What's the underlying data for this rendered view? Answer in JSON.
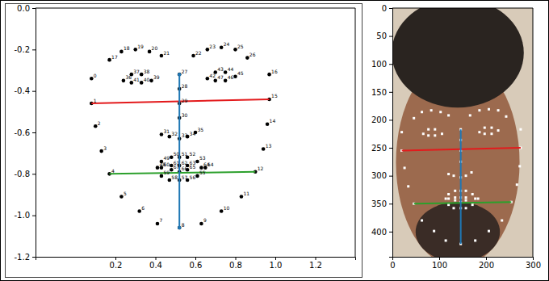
{
  "chart_data": [
    {
      "type": "scatter",
      "xlim": [
        -0.2,
        1.4
      ],
      "ylim": [
        -1.2,
        0.0
      ],
      "xticks": [
        0.2,
        0.4,
        0.6,
        0.8,
        {
          "value": 1.0,
          "label": "1.0"
        },
        1.2
      ],
      "yticks": [
        {
          "value": 0.0,
          "label": "0.0"
        },
        -0.2,
        -0.4,
        -0.6,
        -0.8,
        {
          "value": -1.0,
          "label": "-1.0"
        },
        -1.2
      ],
      "series": [
        {
          "type": "scatter",
          "color": "#000000",
          "marker": "circle",
          "labels": [
            "0",
            "1",
            "2",
            "3",
            "4",
            "5",
            "6",
            "7",
            "8",
            "9",
            "10",
            "11",
            "12",
            "13",
            "14",
            "15",
            "16",
            "17",
            "18",
            "19",
            "20",
            "21",
            "22",
            "23",
            "24",
            "25",
            "26",
            "27",
            "28",
            "29",
            "30",
            "31",
            "32",
            "33",
            "34",
            "35",
            "36",
            "37",
            "38",
            "39",
            "40",
            "41",
            "42",
            "43",
            "44",
            "45",
            "46",
            "47",
            "48",
            "49",
            "50",
            "51",
            "52",
            "53",
            "54",
            "55",
            "56",
            "57",
            "58",
            "59",
            "60",
            "61",
            "62",
            "63",
            "64",
            "65",
            "66",
            "67"
          ],
          "x": [
            0.08,
            0.08,
            0.1,
            0.13,
            0.17,
            0.23,
            0.32,
            0.41,
            0.52,
            0.63,
            0.73,
            0.83,
            0.9,
            0.94,
            0.96,
            0.97,
            0.97,
            0.17,
            0.23,
            0.3,
            0.37,
            0.43,
            0.59,
            0.66,
            0.73,
            0.8,
            0.86,
            0.52,
            0.52,
            0.52,
            0.52,
            0.43,
            0.47,
            0.52,
            0.56,
            0.6,
            0.24,
            0.28,
            0.33,
            0.38,
            0.33,
            0.28,
            0.66,
            0.7,
            0.75,
            0.8,
            0.75,
            0.7,
            0.41,
            0.43,
            0.48,
            0.52,
            0.56,
            0.61,
            0.65,
            0.61,
            0.56,
            0.52,
            0.47,
            0.43,
            0.43,
            0.48,
            0.52,
            0.56,
            0.63,
            0.56,
            0.52,
            0.48
          ],
          "y": [
            -0.34,
            -0.46,
            -0.57,
            -0.69,
            -0.8,
            -0.91,
            -0.98,
            -1.04,
            -1.06,
            -1.04,
            -0.98,
            -0.91,
            -0.79,
            -0.68,
            -0.56,
            -0.44,
            -0.32,
            -0.25,
            -0.21,
            -0.2,
            -0.21,
            -0.23,
            -0.23,
            -0.2,
            -0.19,
            -0.2,
            -0.24,
            -0.32,
            -0.39,
            -0.46,
            -0.53,
            -0.61,
            -0.62,
            -0.63,
            -0.62,
            -0.6,
            -0.35,
            -0.32,
            -0.32,
            -0.35,
            -0.36,
            -0.36,
            -0.34,
            -0.31,
            -0.31,
            -0.33,
            -0.35,
            -0.35,
            -0.77,
            -0.74,
            -0.72,
            -0.72,
            -0.72,
            -0.74,
            -0.77,
            -0.81,
            -0.83,
            -0.83,
            -0.83,
            -0.81,
            -0.77,
            -0.76,
            -0.76,
            -0.76,
            -0.77,
            -0.78,
            -0.79,
            -0.78
          ]
        },
        {
          "type": "line",
          "color": "#e31a1c",
          "x": [
            0.08,
            0.97
          ],
          "y": [
            -0.46,
            -0.44
          ]
        },
        {
          "type": "line",
          "color": "#2ca02c",
          "x": [
            0.17,
            0.9
          ],
          "y": [
            -0.8,
            -0.79
          ]
        },
        {
          "type": "line",
          "color": "#1f77b4",
          "marker": "circle",
          "x": [
            0.52,
            0.52
          ],
          "y": [
            -0.32,
            -1.06
          ]
        }
      ]
    },
    {
      "type": "image",
      "xlim": [
        0,
        300
      ],
      "ylim": [
        445,
        0
      ],
      "xticks": [
        0,
        100,
        200,
        300
      ],
      "yticks": [
        0,
        50,
        100,
        150,
        200,
        250,
        300,
        350,
        400
      ],
      "series": [
        {
          "type": "scatter",
          "color": "#ffffff",
          "marker": "square",
          "x": [
            20,
            20,
            26,
            34,
            46,
            63,
            89,
            114,
            146,
            177,
            206,
            234,
            254,
            266,
            272,
            274,
            274,
            46,
            63,
            83,
            103,
            120,
            166,
            186,
            206,
            226,
            243,
            146,
            146,
            146,
            146,
            120,
            131,
            146,
            157,
            169,
            66,
            77,
            91,
            106,
            91,
            77,
            186,
            197,
            212,
            226,
            212,
            197,
            114,
            120,
            134,
            146,
            157,
            171,
            183,
            171,
            157,
            146,
            131,
            120,
            120,
            134,
            146,
            157,
            177,
            157,
            146,
            134
          ],
          "y": [
            222,
            255,
            286,
            319,
            350,
            380,
            399,
            416,
            422,
            416,
            399,
            380,
            347,
            316,
            283,
            250,
            217,
            197,
            186,
            183,
            186,
            192,
            192,
            183,
            181,
            183,
            194,
            217,
            236,
            255,
            275,
            297,
            300,
            303,
            300,
            294,
            225,
            217,
            217,
            225,
            228,
            228,
            222,
            214,
            214,
            219,
            225,
            225,
            341,
            333,
            327,
            327,
            327,
            333,
            341,
            352,
            358,
            358,
            358,
            352,
            341,
            339,
            339,
            339,
            341,
            344,
            347,
            344
          ]
        },
        {
          "type": "line",
          "color": "#e31a1c",
          "x": [
            20,
            274
          ],
          "y": [
            255,
            250
          ]
        },
        {
          "type": "line",
          "color": "#2ca02c",
          "x": [
            46,
            254
          ],
          "y": [
            350,
            347
          ]
        },
        {
          "type": "line",
          "color": "#1f77b4",
          "x": [
            146,
            146
          ],
          "y": [
            217,
            422
          ]
        }
      ]
    }
  ]
}
